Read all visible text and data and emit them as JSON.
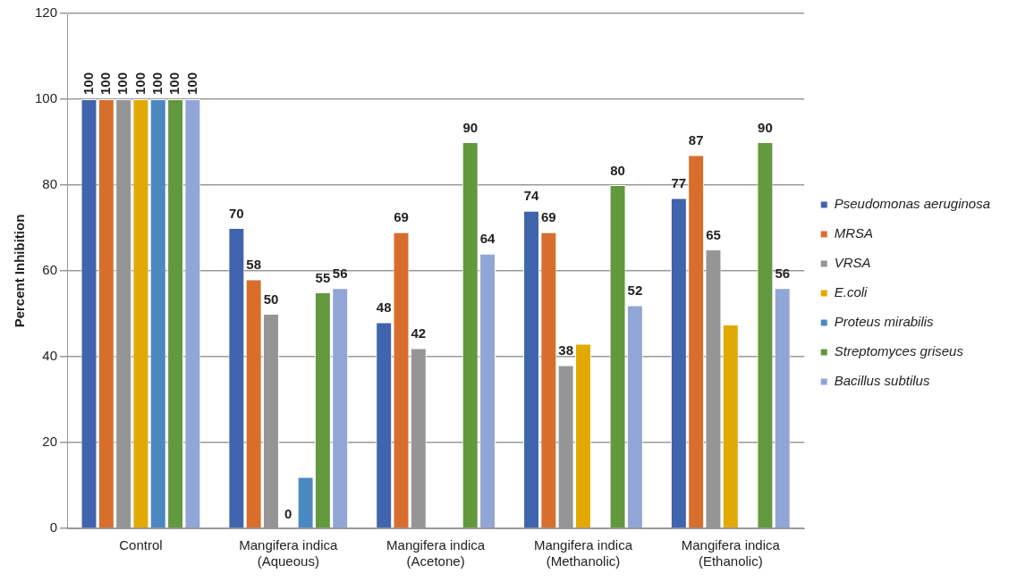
{
  "chart_data": {
    "type": "bar",
    "ylabel": "Percent Inhibition",
    "categories": [
      "Control",
      "Mangifera indica (Aqueous)",
      "Mangifera indica (Acetone)",
      "Mangifera indica (Methanolic)",
      "Mangifera indica (Ethanolic)"
    ],
    "series": [
      {
        "name": "Pseudomonas aeruginosa",
        "color": "#4064ad",
        "values": [
          100,
          70,
          48,
          74,
          77
        ],
        "value_labels": [
          "100",
          "70",
          "48",
          "74",
          "77"
        ]
      },
      {
        "name": "MRSA",
        "color": "#d86e2c",
        "values": [
          100,
          58,
          69,
          69,
          87
        ],
        "value_labels": [
          "100",
          "58",
          "69",
          "69",
          "87"
        ]
      },
      {
        "name": "VRSA",
        "color": "#959595",
        "values": [
          100,
          50,
          42,
          38,
          65
        ],
        "value_labels": [
          "100",
          "50",
          "42",
          "38",
          "65"
        ]
      },
      {
        "name": "E.coli",
        "color": "#e2aa00",
        "values": [
          100,
          0,
          null,
          43,
          47.5
        ],
        "value_labels": [
          "100",
          "0",
          null,
          null,
          null
        ]
      },
      {
        "name": "Proteus mirabilis",
        "color": "#4c88c0",
        "values": [
          100,
          12,
          null,
          null,
          null
        ],
        "value_labels": [
          "100",
          null,
          null,
          null,
          null
        ]
      },
      {
        "name": "Streptomyces griseus",
        "color": "#62993e",
        "values": [
          100,
          55,
          90,
          80,
          90
        ],
        "value_labels": [
          "100",
          "55",
          "90",
          "80",
          "90"
        ]
      },
      {
        "name": "Bacillus subtilus",
        "color": "#91a6d6",
        "values": [
          100,
          56,
          64,
          52,
          56
        ],
        "value_labels": [
          "100",
          "56",
          "64",
          "52",
          "56"
        ]
      }
    ],
    "ylim": [
      0,
      120
    ],
    "yticks": [
      0,
      20,
      40,
      60,
      80,
      100,
      120
    ],
    "grid": "y",
    "legend": "right"
  }
}
